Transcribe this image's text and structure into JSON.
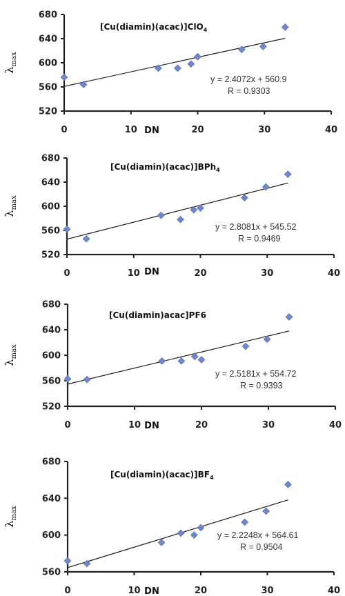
{
  "chart_data": [
    {
      "type": "scatter",
      "title": {
        "main": "[Cu(diamin)(acac)]ClO",
        "sub": "4"
      },
      "xlabel": "DN",
      "ylabel": {
        "main": "λ",
        "sub": "max"
      },
      "xlim": [
        0,
        40
      ],
      "ylim": [
        520,
        680
      ],
      "xticks": [
        "0",
        "10",
        "20",
        "30",
        "40"
      ],
      "yticks": [
        "520",
        "560",
        "600",
        "640",
        "680"
      ],
      "grid": false,
      "points": [
        {
          "x": 0,
          "y": 576
        },
        {
          "x": 2.9,
          "y": 564
        },
        {
          "x": 14.1,
          "y": 591
        },
        {
          "x": 17,
          "y": 591
        },
        {
          "x": 19,
          "y": 598
        },
        {
          "x": 20,
          "y": 610
        },
        {
          "x": 26.6,
          "y": 622
        },
        {
          "x": 29.8,
          "y": 627
        },
        {
          "x": 33.1,
          "y": 659
        }
      ],
      "trendline": {
        "slope": 2.4072,
        "intercept": 560.9
      },
      "equation": "y = 2.4072x + 560.9",
      "r_text": "R = 0.9303",
      "color": "#7087c8"
    },
    {
      "type": "scatter",
      "title": {
        "main": "[Cu(diamin)(acac)]BPh",
        "sub": "4"
      },
      "xlabel": "DN",
      "ylabel": {
        "main": "λ",
        "sub": "max"
      },
      "xlim": [
        0,
        40
      ],
      "ylim": [
        520,
        680
      ],
      "xticks": [
        "0",
        "10",
        "20",
        "30",
        "40"
      ],
      "yticks": [
        "520",
        "560",
        "600",
        "640",
        "680"
      ],
      "grid": false,
      "points": [
        {
          "x": 0,
          "y": 562
        },
        {
          "x": 2.9,
          "y": 546
        },
        {
          "x": 14.1,
          "y": 585
        },
        {
          "x": 17,
          "y": 578
        },
        {
          "x": 19,
          "y": 594
        },
        {
          "x": 20,
          "y": 597
        },
        {
          "x": 26.6,
          "y": 614
        },
        {
          "x": 29.8,
          "y": 632
        },
        {
          "x": 33.1,
          "y": 653
        }
      ],
      "trendline": {
        "slope": 2.8081,
        "intercept": 545.52
      },
      "equation": "y = 2.8081x + 545.52",
      "r_text": "R = 0.9469",
      "color": "#7087c8"
    },
    {
      "type": "scatter",
      "title": {
        "main": "[Cu(diamin)acac]PF6",
        "sub": ""
      },
      "xlabel": "DN",
      "ylabel": {
        "main": "λ",
        "sub": "max"
      },
      "xlim": [
        0,
        40
      ],
      "ylim": [
        520,
        680
      ],
      "xticks": [
        "0",
        "10",
        "20",
        "30",
        "40"
      ],
      "yticks": [
        "520",
        "560",
        "600",
        "640",
        "680"
      ],
      "grid": false,
      "points": [
        {
          "x": 0,
          "y": 563
        },
        {
          "x": 2.9,
          "y": 562
        },
        {
          "x": 14.1,
          "y": 591
        },
        {
          "x": 17,
          "y": 591
        },
        {
          "x": 19,
          "y": 598
        },
        {
          "x": 20,
          "y": 593
        },
        {
          "x": 26.6,
          "y": 614
        },
        {
          "x": 29.8,
          "y": 625
        },
        {
          "x": 33.1,
          "y": 660
        }
      ],
      "trendline": {
        "slope": 2.5181,
        "intercept": 554.72
      },
      "equation": "y = 2.5181x + 554.72",
      "r_text": "R = 0.9393",
      "color": "#7087c8"
    },
    {
      "type": "scatter",
      "title": {
        "main": "[Cu(diamin)(acac)]BF",
        "sub": "4"
      },
      "xlabel": "DN",
      "ylabel": {
        "main": "λ",
        "sub": "max"
      },
      "xlim": [
        0,
        40
      ],
      "ylim": [
        560,
        680
      ],
      "xticks": [
        "0",
        "10",
        "20",
        "30",
        "40"
      ],
      "yticks": [
        "560",
        "600",
        "640",
        "680"
      ],
      "grid": false,
      "points": [
        {
          "x": 0,
          "y": 572
        },
        {
          "x": 2.9,
          "y": 569
        },
        {
          "x": 14.1,
          "y": 592
        },
        {
          "x": 17,
          "y": 602
        },
        {
          "x": 19,
          "y": 600
        },
        {
          "x": 20,
          "y": 608
        },
        {
          "x": 26.6,
          "y": 614
        },
        {
          "x": 29.8,
          "y": 626
        },
        {
          "x": 33.1,
          "y": 655
        }
      ],
      "trendline": {
        "slope": 2.2248,
        "intercept": 564.61
      },
      "equation": "y = 2.2248x + 564.61",
      "r_text": "R = 0.9504",
      "color": "#7087c8"
    }
  ]
}
